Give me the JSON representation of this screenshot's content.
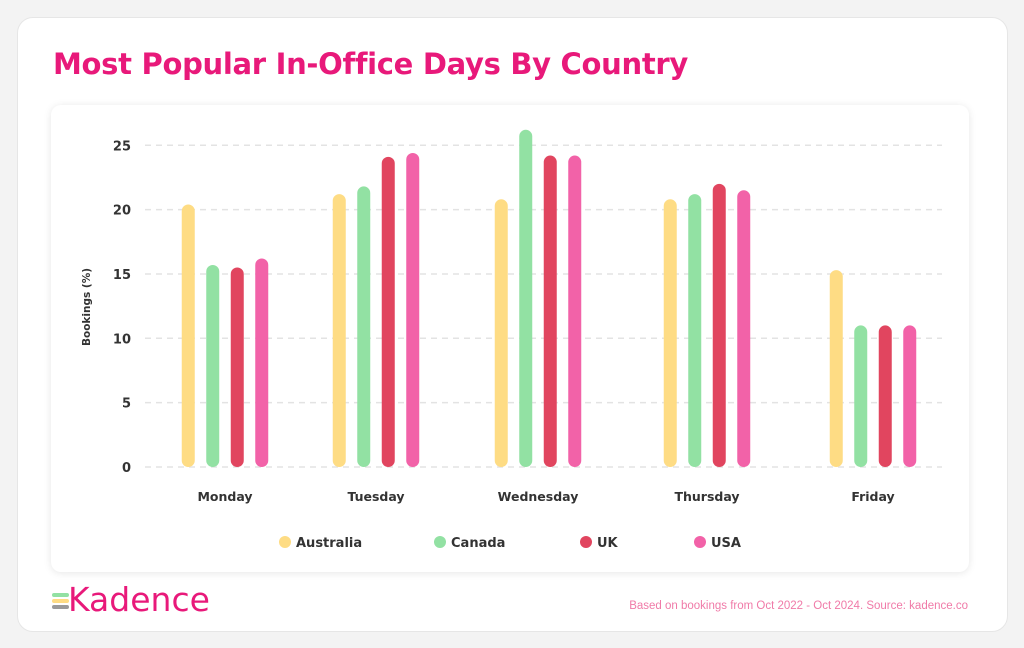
{
  "title": "Most Popular In-Office Days By Country",
  "logo_text": "Kadence",
  "footnote": "Based on bookings from Oct 2022 - Oct 2024. Source: kadence.co",
  "chart_data": {
    "type": "bar",
    "title": "Most Popular In-Office Days By Country",
    "xlabel": "",
    "ylabel": "Bookings (%)",
    "ylim": [
      0,
      25
    ],
    "yticks": [
      0,
      5,
      10,
      15,
      20,
      25
    ],
    "grid": true,
    "legend_position": "bottom",
    "categories": [
      "Monday",
      "Tuesday",
      "Wednesday",
      "Thursday",
      "Friday"
    ],
    "series": [
      {
        "name": "Australia",
        "color": "#fedc84",
        "values": [
          20.4,
          21.2,
          20.8,
          20.8,
          15.3
        ]
      },
      {
        "name": "Canada",
        "color": "#92e1a3",
        "values": [
          15.7,
          21.8,
          26.2,
          21.2,
          11.0
        ]
      },
      {
        "name": "UK",
        "color": "#e1455f",
        "values": [
          15.5,
          24.1,
          24.2,
          22.0,
          11.0
        ]
      },
      {
        "name": "USA",
        "color": "#f262a8",
        "values": [
          16.2,
          24.4,
          24.2,
          21.5,
          11.0
        ]
      }
    ]
  }
}
